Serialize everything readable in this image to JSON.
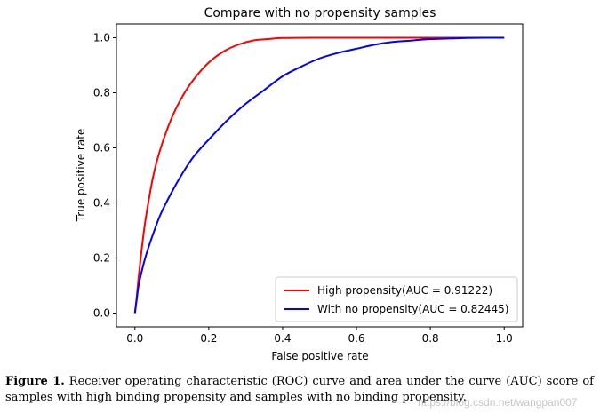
{
  "chart_data": {
    "type": "line",
    "title": "Compare with no propensity samples",
    "xlabel": "False positive rate",
    "ylabel": "True positive rate",
    "xlim": [
      -0.05,
      1.05
    ],
    "ylim": [
      -0.05,
      1.05
    ],
    "xticks": [
      0.0,
      0.2,
      0.4,
      0.6,
      0.8,
      1.0
    ],
    "yticks": [
      0.0,
      0.2,
      0.4,
      0.6,
      0.8,
      1.0
    ],
    "tick_labels_x": [
      "0.0",
      "0.2",
      "0.4",
      "0.6",
      "0.8",
      "1.0"
    ],
    "tick_labels_y": [
      "0.0",
      "0.2",
      "0.4",
      "0.6",
      "0.8",
      "1.0"
    ],
    "legend_position": "lower-right",
    "series": [
      {
        "name": "High propensity(AUC = 0.91222)",
        "color": "#ff0000",
        "x": [
          0.0,
          0.005,
          0.01,
          0.02,
          0.03,
          0.05,
          0.07,
          0.1,
          0.13,
          0.16,
          0.2,
          0.24,
          0.28,
          0.32,
          0.36,
          0.4,
          0.5,
          0.6,
          0.7,
          0.8,
          0.9,
          1.0
        ],
        "y": [
          0.0,
          0.06,
          0.13,
          0.25,
          0.35,
          0.5,
          0.6,
          0.71,
          0.79,
          0.85,
          0.91,
          0.95,
          0.975,
          0.99,
          0.995,
          0.999,
          1.0,
          1.0,
          1.0,
          1.0,
          1.0,
          1.0
        ]
      },
      {
        "name": "With no propensity(AUC = 0.82445)",
        "color": "#0000ff",
        "x": [
          0.0,
          0.005,
          0.01,
          0.02,
          0.03,
          0.05,
          0.07,
          0.1,
          0.13,
          0.16,
          0.2,
          0.25,
          0.3,
          0.35,
          0.4,
          0.45,
          0.5,
          0.55,
          0.6,
          0.65,
          0.7,
          0.75,
          0.8,
          0.85,
          0.9,
          0.95,
          1.0
        ],
        "y": [
          0.0,
          0.05,
          0.1,
          0.16,
          0.21,
          0.29,
          0.36,
          0.44,
          0.51,
          0.57,
          0.63,
          0.7,
          0.76,
          0.81,
          0.86,
          0.895,
          0.925,
          0.945,
          0.96,
          0.975,
          0.985,
          0.99,
          0.995,
          0.997,
          0.999,
          1.0,
          1.0
        ]
      }
    ]
  },
  "caption": {
    "label": "Figure 1.",
    "text": "Receiver operating characteristic (ROC) curve and area under the curve (AUC) score of samples with high binding propensity and samples with no binding propensity."
  },
  "watermark": "https://blog.csdn.net/wangpan007"
}
